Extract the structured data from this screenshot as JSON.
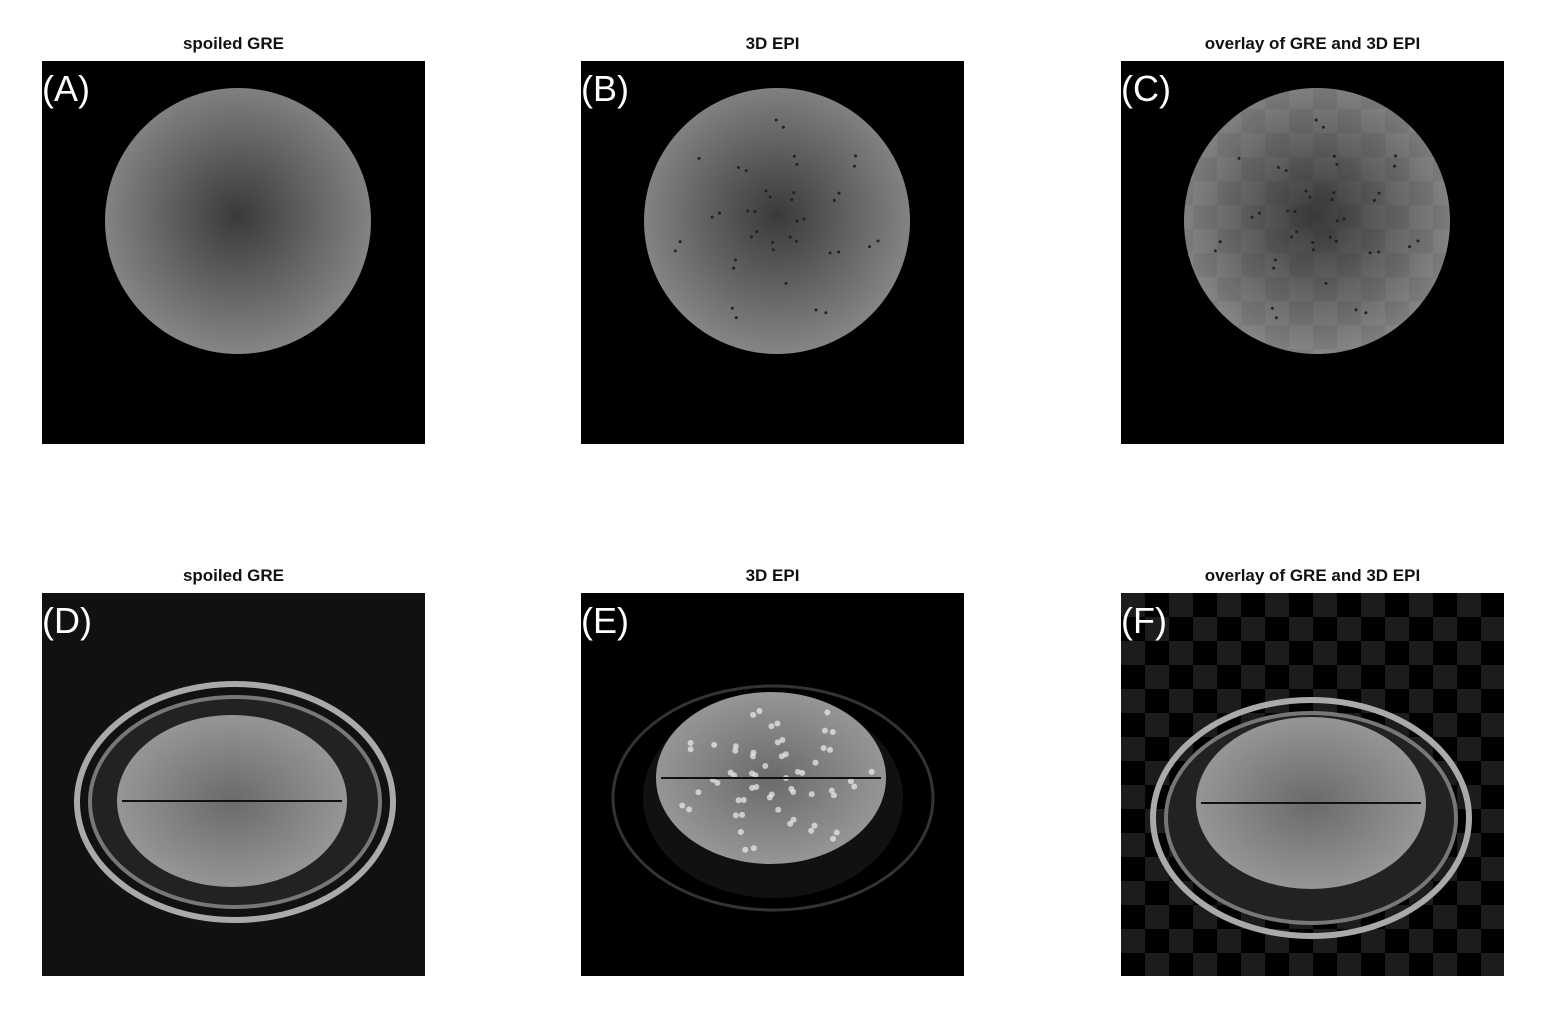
{
  "panels": [
    {
      "label": "(A)",
      "title": "spoiled GRE",
      "kind": "phantom-gre"
    },
    {
      "label": "(B)",
      "title": "3D EPI",
      "kind": "phantom-epi"
    },
    {
      "label": "(C)",
      "title": "overlay of GRE and 3D EPI",
      "kind": "phantom-overlay"
    },
    {
      "label": "(D)",
      "title": "spoiled GRE",
      "kind": "brain-gre"
    },
    {
      "label": "(E)",
      "title": "3D EPI",
      "kind": "brain-epi"
    },
    {
      "label": "(F)",
      "title": "overlay of GRE and 3D EPI",
      "kind": "brain-overlay"
    }
  ]
}
